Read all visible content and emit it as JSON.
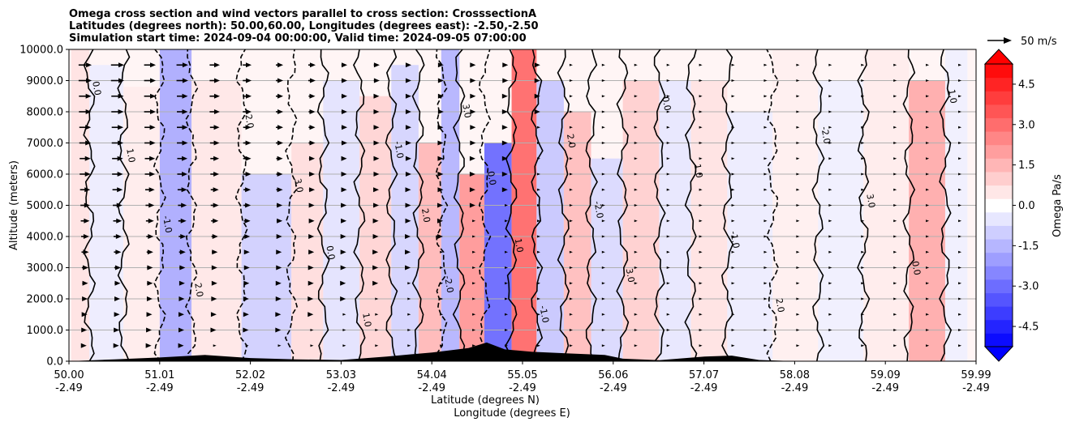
{
  "chart_data": {
    "type": "heatmap",
    "title_lines": [
      "Omega cross section and wind vectors parallel to cross section: CrosssectionA",
      "Latitudes (degrees north): 50.00,60.00, Longitudes (degrees east): -2.50,-2.50",
      "Simulation start time: 2024-09-04 00:00:00, Valid time: 2024-09-05 07:00:00"
    ],
    "x_ticks": [
      {
        "lat": "50.00",
        "lon": "-2.49"
      },
      {
        "lat": "51.01",
        "lon": "-2.49"
      },
      {
        "lat": "52.02",
        "lon": "-2.49"
      },
      {
        "lat": "53.03",
        "lon": "-2.49"
      },
      {
        "lat": "54.04",
        "lon": "-2.49"
      },
      {
        "lat": "55.05",
        "lon": "-2.49"
      },
      {
        "lat": "56.06",
        "lon": "-2.49"
      },
      {
        "lat": "57.07",
        "lon": "-2.49"
      },
      {
        "lat": "58.08",
        "lon": "-2.49"
      },
      {
        "lat": "59.09",
        "lon": "-2.49"
      },
      {
        "lat": "59.99",
        "lon": "-2.49"
      }
    ],
    "xlim": [
      50.0,
      59.99
    ],
    "xlabel_lat": "Latitude (degrees N)",
    "xlabel_lon": "Longitude (degrees E)",
    "ylabel": "Altitude (meters)",
    "ylim": [
      0,
      10000
    ],
    "y_ticks": [
      "0.0",
      "1000.0",
      "2000.0",
      "3000.0",
      "4000.0",
      "5000.0",
      "6000.0",
      "7000.0",
      "8000.0",
      "9000.0",
      "10000.0"
    ],
    "y_tick_values": [
      0,
      1000,
      2000,
      3000,
      4000,
      5000,
      6000,
      7000,
      8000,
      9000,
      10000
    ],
    "grid": "horizontal",
    "colorbar": {
      "label": "Omega Pa/s",
      "range": [
        -5.25,
        5.25
      ],
      "levels_step": 0.5,
      "extend": "both",
      "colormap": "bwr",
      "ticks": [
        "-4.5",
        "-3.0",
        "-1.5",
        "0.0",
        "1.5",
        "3.0",
        "4.5"
      ],
      "tick_values": [
        -4.5,
        -3.0,
        -1.5,
        0.0,
        1.5,
        3.0,
        4.5
      ]
    },
    "quiver_key": "50 m/s",
    "contour_labels": [
      "0.0",
      "1.0",
      "-1.0",
      "2.0",
      "-2.0",
      "3.0"
    ],
    "omega_columns": [
      {
        "lat": 50.05,
        "value": 0.6,
        "top": 10000
      },
      {
        "lat": 50.4,
        "value": -0.4,
        "top": 9500
      },
      {
        "lat": 50.8,
        "value": 0.4,
        "top": 8800
      },
      {
        "lat": 51.2,
        "value": -1.8,
        "top": 10000
      },
      {
        "lat": 51.5,
        "value": 0.5,
        "top": 9000
      },
      {
        "lat": 52.3,
        "value": -1.0,
        "top": 6000
      },
      {
        "lat": 52.6,
        "value": 0.7,
        "top": 7000
      },
      {
        "lat": 53.0,
        "value": -0.6,
        "top": 9000
      },
      {
        "lat": 53.4,
        "value": 0.9,
        "top": 8500
      },
      {
        "lat": 53.7,
        "value": -0.9,
        "top": 9500
      },
      {
        "lat": 54.0,
        "value": 1.5,
        "top": 7000
      },
      {
        "lat": 54.2,
        "value": -1.6,
        "top": 10000
      },
      {
        "lat": 54.4,
        "value": 2.2,
        "top": 6000
      },
      {
        "lat": 54.75,
        "value": -3.2,
        "top": 7000
      },
      {
        "lat": 55.0,
        "value": 3.2,
        "top": 10000
      },
      {
        "lat": 55.3,
        "value": -1.2,
        "top": 9000
      },
      {
        "lat": 55.6,
        "value": 1.4,
        "top": 8000
      },
      {
        "lat": 55.9,
        "value": -0.8,
        "top": 6500
      },
      {
        "lat": 56.3,
        "value": 1.0,
        "top": 9000
      },
      {
        "lat": 56.7,
        "value": -0.5,
        "top": 9000
      },
      {
        "lat": 57.0,
        "value": 0.6,
        "top": 9000
      },
      {
        "lat": 57.5,
        "value": -0.4,
        "top": 8000
      },
      {
        "lat": 58.0,
        "value": 0.3,
        "top": 10000
      },
      {
        "lat": 58.5,
        "value": -0.3,
        "top": 9000
      },
      {
        "lat": 59.0,
        "value": 0.4,
        "top": 10000
      },
      {
        "lat": 59.5,
        "value": 1.8,
        "top": 9000
      },
      {
        "lat": 59.8,
        "value": -0.3,
        "top": 10000
      }
    ],
    "wind_rows": [
      {
        "alt": 9500,
        "speeds": [
          18,
          18,
          16,
          16,
          14,
          12,
          10,
          10,
          8,
          8,
          6,
          6,
          5,
          5,
          4,
          3,
          2,
          2,
          1,
          1,
          1,
          1,
          1,
          1,
          1,
          1,
          1,
          1
        ]
      },
      {
        "alt": 9000,
        "speeds": [
          18,
          18,
          16,
          16,
          14,
          12,
          10,
          10,
          8,
          8,
          6,
          6,
          5,
          5,
          4,
          3,
          2,
          2,
          1,
          1,
          1,
          1,
          1,
          1,
          1,
          1,
          1,
          1
        ]
      },
      {
        "alt": 8500,
        "speeds": [
          17,
          17,
          16,
          15,
          14,
          12,
          10,
          9,
          8,
          7,
          6,
          6,
          5,
          4,
          4,
          3,
          2,
          2,
          1,
          1,
          1,
          1,
          1,
          1,
          1,
          1,
          1,
          1
        ]
      },
      {
        "alt": 8000,
        "speeds": [
          17,
          17,
          16,
          15,
          14,
          12,
          10,
          9,
          8,
          7,
          6,
          6,
          5,
          4,
          4,
          3,
          2,
          2,
          1,
          1,
          1,
          1,
          1,
          1,
          1,
          1,
          1,
          1
        ]
      },
      {
        "alt": 7500,
        "speeds": [
          16,
          16,
          15,
          15,
          13,
          11,
          10,
          9,
          8,
          7,
          6,
          5,
          5,
          4,
          3,
          3,
          2,
          2,
          1,
          1,
          1,
          1,
          1,
          1,
          1,
          1,
          1,
          1
        ]
      },
      {
        "alt": 7000,
        "speeds": [
          16,
          16,
          15,
          15,
          13,
          11,
          10,
          9,
          8,
          7,
          6,
          5,
          5,
          4,
          3,
          3,
          2,
          2,
          1,
          1,
          1,
          1,
          1,
          1,
          1,
          1,
          1,
          1
        ]
      },
      {
        "alt": 6500,
        "speeds": [
          15,
          15,
          14,
          14,
          12,
          11,
          9,
          8,
          7,
          7,
          6,
          5,
          4,
          4,
          3,
          3,
          2,
          2,
          1,
          1,
          1,
          1,
          1,
          1,
          1,
          1,
          1,
          1
        ]
      },
      {
        "alt": 6000,
        "speeds": [
          15,
          15,
          14,
          14,
          12,
          11,
          9,
          8,
          7,
          7,
          6,
          5,
          4,
          4,
          3,
          3,
          2,
          2,
          1,
          1,
          1,
          1,
          1,
          1,
          1,
          1,
          1,
          1
        ]
      },
      {
        "alt": 5500,
        "speeds": [
          14,
          14,
          13,
          13,
          11,
          10,
          9,
          8,
          7,
          6,
          5,
          5,
          4,
          4,
          3,
          2,
          2,
          2,
          1,
          1,
          1,
          1,
          1,
          1,
          1,
          1,
          1,
          1
        ]
      },
      {
        "alt": 5000,
        "speeds": [
          13,
          13,
          12,
          12,
          11,
          10,
          8,
          7,
          6,
          6,
          5,
          4,
          4,
          3,
          3,
          2,
          2,
          1,
          1,
          1,
          1,
          1,
          1,
          1,
          1,
          1,
          1,
          1
        ]
      },
      {
        "alt": 4500,
        "speeds": [
          12,
          12,
          11,
          11,
          10,
          9,
          8,
          7,
          6,
          5,
          5,
          4,
          3,
          3,
          2,
          2,
          2,
          1,
          1,
          1,
          1,
          1,
          1,
          1,
          1,
          1,
          1,
          1
        ]
      },
      {
        "alt": 4000,
        "speeds": [
          11,
          11,
          10,
          10,
          9,
          8,
          7,
          6,
          5,
          5,
          4,
          4,
          3,
          3,
          2,
          2,
          1,
          1,
          1,
          1,
          1,
          1,
          1,
          1,
          1,
          1,
          1,
          1
        ]
      },
      {
        "alt": 3500,
        "speeds": [
          10,
          10,
          9,
          9,
          8,
          7,
          6,
          6,
          5,
          4,
          4,
          3,
          3,
          2,
          2,
          2,
          1,
          1,
          1,
          1,
          1,
          1,
          1,
          1,
          1,
          1,
          1,
          1
        ]
      },
      {
        "alt": 3000,
        "speeds": [
          9,
          9,
          8,
          8,
          7,
          7,
          6,
          5,
          5,
          4,
          4,
          3,
          3,
          2,
          2,
          2,
          1,
          1,
          1,
          1,
          1,
          1,
          1,
          1,
          1,
          1,
          1,
          1
        ]
      },
      {
        "alt": 2500,
        "speeds": [
          8,
          8,
          8,
          7,
          7,
          6,
          5,
          5,
          4,
          4,
          3,
          3,
          2,
          2,
          2,
          1,
          1,
          1,
          1,
          1,
          1,
          1,
          1,
          1,
          1,
          1,
          1,
          1
        ]
      },
      {
        "alt": 2000,
        "speeds": [
          7,
          7,
          7,
          6,
          6,
          5,
          5,
          4,
          4,
          3,
          3,
          3,
          2,
          2,
          2,
          1,
          1,
          1,
          1,
          1,
          1,
          1,
          1,
          1,
          1,
          1,
          1,
          1
        ]
      },
      {
        "alt": 1500,
        "speeds": [
          6,
          6,
          6,
          5,
          5,
          5,
          4,
          4,
          3,
          3,
          3,
          2,
          2,
          2,
          1,
          1,
          1,
          1,
          1,
          1,
          1,
          1,
          1,
          1,
          1,
          1,
          1,
          1
        ]
      },
      {
        "alt": 1000,
        "speeds": [
          5,
          5,
          5,
          5,
          4,
          4,
          4,
          3,
          3,
          3,
          2,
          2,
          2,
          2,
          1,
          1,
          1,
          1,
          1,
          1,
          1,
          1,
          1,
          1,
          1,
          1,
          1,
          1
        ]
      },
      {
        "alt": 500,
        "speeds": [
          4,
          4,
          4,
          4,
          3,
          3,
          3,
          3,
          2,
          2,
          2,
          2,
          2,
          1,
          1,
          1,
          1,
          1,
          1,
          1,
          1,
          1,
          1,
          1,
          1,
          1,
          1,
          1
        ]
      }
    ],
    "terrain": [
      {
        "lat": 50.5,
        "height": 60
      },
      {
        "lat": 51.0,
        "height": 120
      },
      {
        "lat": 51.5,
        "height": 200
      },
      {
        "lat": 52.0,
        "height": 100
      },
      {
        "lat": 52.5,
        "height": 60
      },
      {
        "lat": 53.0,
        "height": 40
      },
      {
        "lat": 53.5,
        "height": 150
      },
      {
        "lat": 54.0,
        "height": 280
      },
      {
        "lat": 54.4,
        "height": 420
      },
      {
        "lat": 54.6,
        "height": 600
      },
      {
        "lat": 54.8,
        "height": 380
      },
      {
        "lat": 55.1,
        "height": 300
      },
      {
        "lat": 55.5,
        "height": 250
      },
      {
        "lat": 55.9,
        "height": 200
      },
      {
        "lat": 56.1,
        "height": 80
      },
      {
        "lat": 56.5,
        "height": 30
      },
      {
        "lat": 57.0,
        "height": 150
      },
      {
        "lat": 57.3,
        "height": 180
      },
      {
        "lat": 57.6,
        "height": 40
      },
      {
        "lat": 58.0,
        "height": 0
      }
    ]
  }
}
